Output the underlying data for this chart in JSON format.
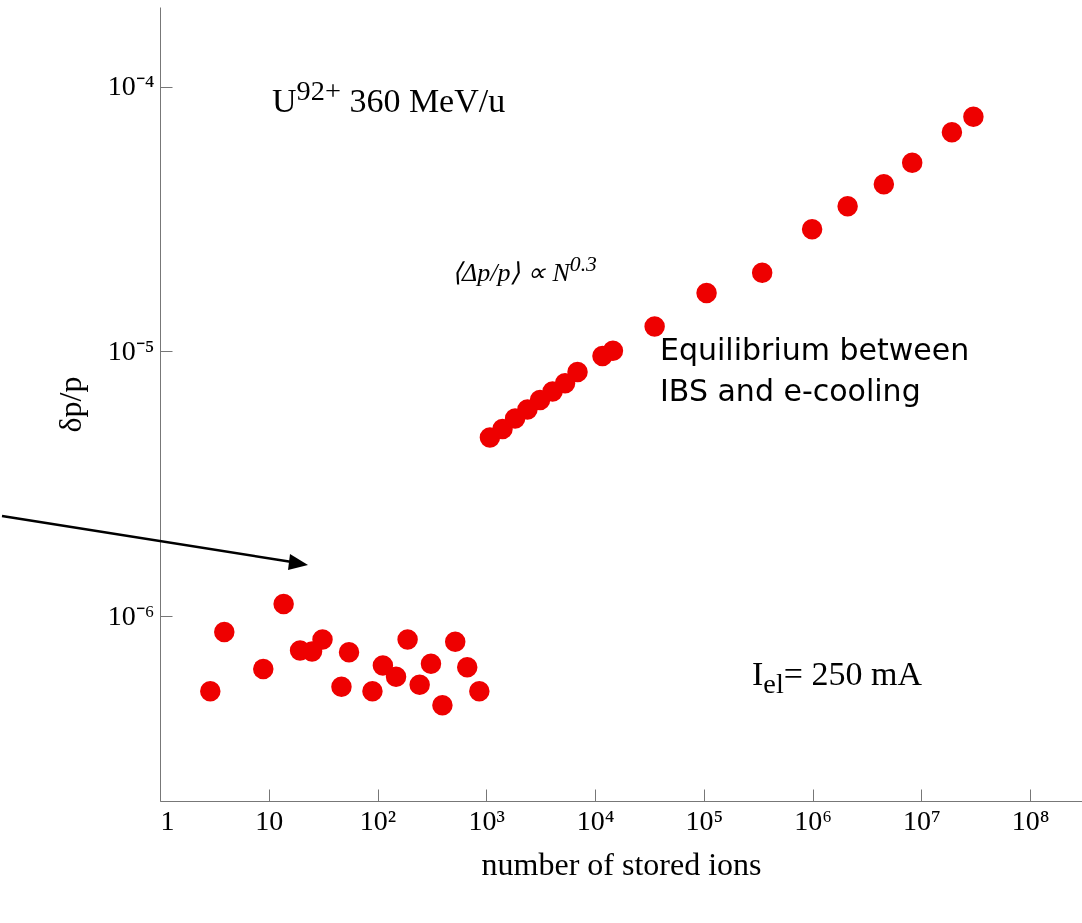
{
  "chart_data": {
    "type": "scatter",
    "xlabel": "number of stored ions",
    "ylabel": "δp/p",
    "log": "xy",
    "grid": false,
    "marker": "circle",
    "xlim": [
      1,
      300000000
    ],
    "ylim": [
      2e-07,
      0.0002
    ],
    "xticks": [
      1,
      10,
      {
        "value": 100,
        "label": "10²"
      },
      {
        "value": 1000,
        "label": "10³"
      },
      {
        "value": 10000,
        "label": "10⁴"
      },
      {
        "value": 100000,
        "label": "10⁵"
      },
      {
        "value": 1000000,
        "label": "10⁶"
      },
      {
        "value": 10000000,
        "label": "10⁷"
      },
      {
        "value": 100000000,
        "label": "10⁸"
      }
    ],
    "yticks": [
      {
        "value": 1e-06,
        "label": "10⁻⁶"
      },
      {
        "value": 1e-05,
        "label": "10⁻⁵"
      },
      {
        "value": 0.0001,
        "label": "10⁻⁴"
      }
    ],
    "series": [
      {
        "color": "#ee0000",
        "x": [
          2.9,
          3.9,
          8.9,
          13.7,
          19.4,
          25,
          31.2,
          46.6,
          54.7,
          89.8,
          112,
          148,
          189,
          244,
          310,
          395,
          518,
          668,
          863,
          1080,
          1410,
          1840,
          2390,
          3120,
          4070,
          5300,
          6900,
          11700,
          14600,
          35300,
          106000,
          344000,
          990000,
          2100000,
          4520000,
          8240000,
          19100000,
          30100000
        ],
        "values": [
          5.2e-07,
          8.7e-07,
          6.3e-07,
          1.11e-06,
          7.4e-07,
          7.35e-07,
          8.15e-07,
          5.4e-07,
          7.3e-07,
          5.2e-07,
          6.5e-07,
          5.9e-07,
          8.15e-07,
          5.5e-07,
          6.6e-07,
          4.6e-07,
          8e-07,
          6.4e-07,
          5.2e-07,
          4.73e-06,
          5.09e-06,
          5.57e-06,
          6.03e-06,
          6.55e-06,
          7.05e-06,
          7.58e-06,
          8.35e-06,
          9.6e-06,
          1.005e-05,
          1.24e-05,
          1.66e-05,
          1.98e-05,
          2.89e-05,
          3.53e-05,
          4.28e-05,
          5.16e-05,
          6.73e-05,
          7.69e-05
        ]
      }
    ],
    "annotations": [
      "U$^{92+}$ 360 MeV/u",
      "⟨Δp/p⟩ ∝ N$^{0.3}$",
      "Equilibrium between IBS and e-cooling",
      "I$_{el}$= 250 mA"
    ]
  }
}
